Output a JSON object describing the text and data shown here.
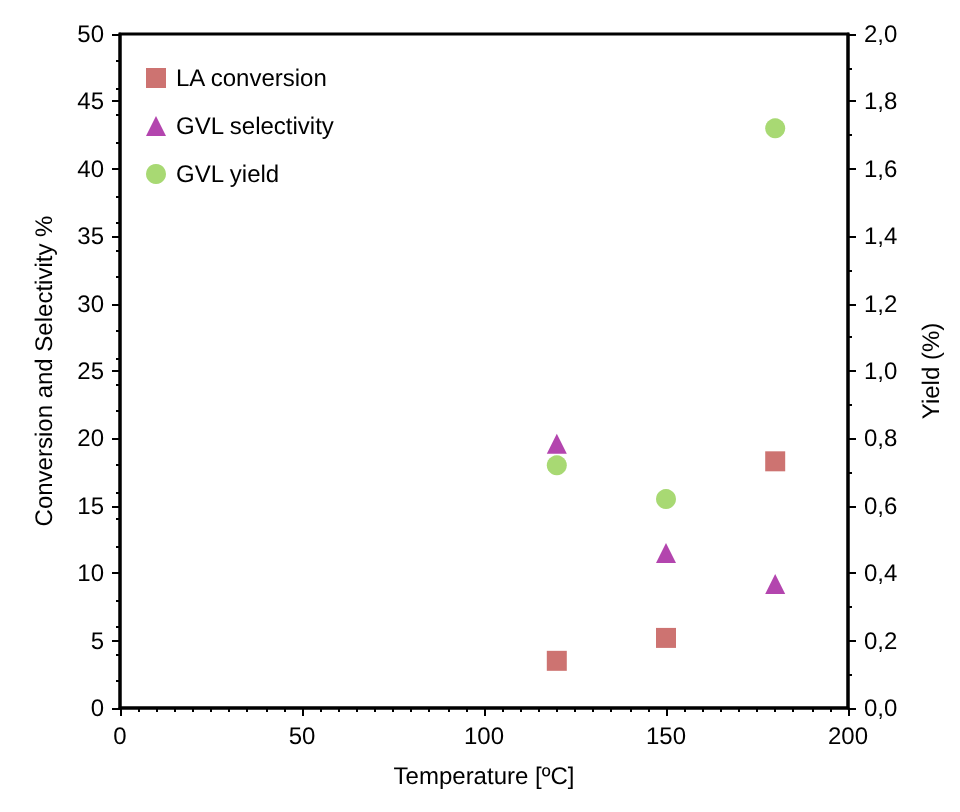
{
  "chart_data": {
    "type": "scatter",
    "xlabel": "Temperature [ºC]",
    "ylabel": "Conversion and Selectivity %",
    "y2label": "Yield (%)",
    "xlim": [
      0,
      200
    ],
    "xticks": [
      0,
      50,
      100,
      150,
      200
    ],
    "ylim": [
      0,
      50
    ],
    "yticks": [
      0,
      5,
      10,
      15,
      20,
      25,
      30,
      35,
      40,
      45,
      50
    ],
    "y2lim": [
      0,
      2
    ],
    "y2ticks": [
      {
        "value": 0,
        "label": "0,0"
      },
      {
        "value": 0.2,
        "label": "0,2"
      },
      {
        "value": 0.4,
        "label": "0,4"
      },
      {
        "value": 0.6,
        "label": "0,6"
      },
      {
        "value": 0.8,
        "label": "0,8"
      },
      {
        "value": 1,
        "label": "1,0"
      },
      {
        "value": 1.2,
        "label": "1,2"
      },
      {
        "value": 1.4,
        "label": "1,4"
      },
      {
        "value": 1.6,
        "label": "1,6"
      },
      {
        "value": 1.8,
        "label": "1,8"
      },
      {
        "value": 2,
        "label": "2,0"
      }
    ],
    "grid": false,
    "legend": "top left",
    "series": [
      {
        "name": "LA conversion",
        "color": "#c0504d",
        "marker": "square",
        "x": [
          120,
          150,
          180
        ],
        "values": [
          3.5,
          5.2,
          18.3
        ]
      },
      {
        "name": "GVL selectivity",
        "color": "#a0169a",
        "marker": "triangle",
        "x": [
          120,
          150,
          180
        ],
        "values": [
          19.6,
          11.5,
          9.2
        ]
      },
      {
        "name": "GVL yield",
        "color": "#92d050",
        "marker": "circle",
        "axis": "y2",
        "x": [
          120,
          150,
          180
        ],
        "values": [
          0.72,
          0.62,
          1.72
        ]
      }
    ]
  }
}
